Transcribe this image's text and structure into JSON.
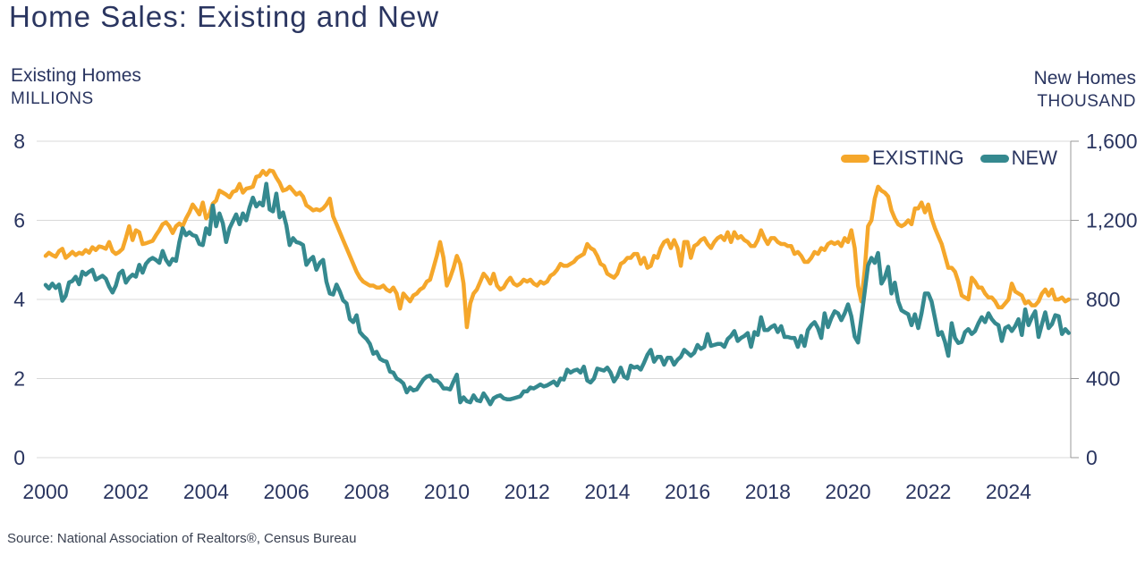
{
  "source": "Source: National Association of Realtors®, Census Bureau",
  "colors": {
    "existing": "#F5A72B",
    "new": "#35898F",
    "text_navy": "#2A3560",
    "gridline": "#D8D8D8",
    "axis_line": "#9A9A9A",
    "source_text": "#3A4151"
  },
  "chart_data": {
    "type": "line",
    "title": "Home Sales: Existing and New",
    "grid": "horizontal",
    "legend_position": "top-right-inside",
    "left_axis": {
      "label": "Existing Homes",
      "units": "MILLIONS",
      "lim": [
        0,
        8
      ],
      "ticks": [
        0,
        2,
        4,
        6,
        8
      ]
    },
    "right_axis": {
      "label": "New Homes",
      "units": "THOUSAND",
      "lim": [
        0,
        1600
      ],
      "ticks": [
        {
          "value": 0,
          "label": "0"
        },
        {
          "value": 400,
          "label": "400"
        },
        {
          "value": 800,
          "label": "800"
        },
        {
          "value": 1200,
          "label": "1,200"
        },
        {
          "value": 1600,
          "label": "1,600"
        }
      ]
    },
    "x_axis": {
      "start_year": 2000,
      "interval": "monthly",
      "end": "2025-07",
      "tick_years": [
        2000,
        2002,
        2004,
        2006,
        2008,
        2010,
        2012,
        2014,
        2016,
        2018,
        2020,
        2022,
        2024
      ]
    },
    "series": [
      {
        "name": "EXISTING",
        "axis": "left",
        "units": "millions SAAR",
        "color": "#F5A72B",
        "values": [
          5.1,
          5.18,
          5.12,
          5.08,
          5.22,
          5.28,
          5.05,
          5.12,
          5.2,
          5.12,
          5.18,
          5.15,
          5.25,
          5.18,
          5.32,
          5.25,
          5.34,
          5.32,
          5.28,
          5.45,
          5.22,
          5.15,
          5.2,
          5.28,
          5.55,
          5.85,
          5.5,
          5.75,
          5.7,
          5.4,
          5.42,
          5.45,
          5.48,
          5.62,
          5.75,
          5.9,
          5.95,
          5.85,
          5.68,
          5.85,
          5.92,
          5.85,
          6.05,
          6.2,
          6.4,
          6.28,
          6.15,
          6.45,
          6.05,
          6.15,
          6.42,
          6.5,
          6.75,
          6.7,
          6.65,
          6.58,
          6.72,
          6.75,
          6.92,
          6.7,
          6.8,
          6.82,
          6.85,
          7.1,
          7.12,
          7.25,
          7.15,
          7.26,
          7.24,
          7.08,
          6.95,
          6.75,
          6.78,
          6.85,
          6.75,
          6.65,
          6.7,
          6.6,
          6.38,
          6.32,
          6.25,
          6.28,
          6.25,
          6.3,
          6.4,
          6.55,
          6.1,
          5.9,
          5.7,
          5.5,
          5.3,
          5.1,
          4.9,
          4.7,
          4.55,
          4.45,
          4.4,
          4.35,
          4.35,
          4.3,
          4.3,
          4.35,
          4.25,
          4.2,
          4.3,
          4.15,
          3.77,
          4.15,
          4.05,
          3.95,
          4.1,
          4.15,
          4.25,
          4.3,
          4.45,
          4.5,
          4.8,
          5.1,
          5.45,
          5.05,
          4.35,
          4.55,
          4.8,
          5.1,
          4.9,
          4.4,
          3.3,
          3.9,
          4.15,
          4.25,
          4.45,
          4.65,
          4.55,
          4.4,
          4.65,
          4.35,
          4.25,
          4.3,
          4.45,
          4.55,
          4.4,
          4.35,
          4.4,
          4.5,
          4.45,
          4.5,
          4.4,
          4.35,
          4.45,
          4.4,
          4.45,
          4.6,
          4.65,
          4.75,
          4.9,
          4.85,
          4.85,
          4.9,
          4.95,
          5.05,
          5.1,
          5.15,
          5.4,
          5.3,
          5.25,
          5.1,
          4.9,
          4.85,
          4.65,
          4.6,
          4.55,
          4.65,
          4.9,
          4.95,
          5.05,
          5.05,
          5.15,
          5.15,
          4.9,
          5.05,
          4.8,
          4.85,
          5.1,
          5.05,
          5.3,
          5.45,
          5.5,
          5.3,
          5.5,
          5.3,
          4.85,
          5.45,
          5.45,
          5.05,
          5.35,
          5.4,
          5.5,
          5.55,
          5.4,
          5.3,
          5.45,
          5.55,
          5.6,
          5.5,
          5.7,
          5.45,
          5.7,
          5.55,
          5.6,
          5.5,
          5.45,
          5.35,
          5.35,
          5.5,
          5.75,
          5.55,
          5.4,
          5.55,
          5.55,
          5.45,
          5.4,
          5.4,
          5.35,
          5.35,
          5.15,
          5.2,
          5.1,
          4.95,
          4.95,
          5.05,
          5.2,
          5.15,
          5.3,
          5.25,
          5.4,
          5.45,
          5.4,
          5.45,
          5.35,
          5.55,
          5.45,
          5.75,
          5.3,
          4.35,
          3.95,
          4.75,
          5.85,
          6.0,
          6.55,
          6.85,
          6.75,
          6.7,
          6.6,
          6.25,
          6.05,
          5.9,
          5.85,
          5.9,
          6.0,
          5.9,
          6.3,
          6.3,
          6.45,
          6.2,
          6.4,
          6.05,
          5.8,
          5.6,
          5.4,
          5.1,
          4.8,
          4.8,
          4.7,
          4.45,
          4.1,
          4.05,
          4.0,
          4.55,
          4.45,
          4.3,
          4.3,
          4.15,
          4.05,
          4.05,
          3.95,
          3.8,
          3.8,
          3.9,
          4.0,
          4.4,
          4.2,
          4.15,
          4.1,
          3.9,
          3.95,
          3.85,
          3.85,
          3.95,
          4.15,
          4.25,
          4.1,
          4.25,
          4.0,
          4.0,
          4.05,
          3.95,
          4.0
        ]
      },
      {
        "name": "NEW",
        "axis": "right",
        "units": "thousands SAAR",
        "color": "#35898F",
        "values": [
          873,
          855,
          880,
          858,
          875,
          793,
          818,
          886,
          893,
          915,
          877,
          940,
          925,
          940,
          950,
          900,
          910,
          920,
          905,
          865,
          835,
          870,
          930,
          945,
          885,
          910,
          925,
          915,
          975,
          935,
          980,
          1000,
          1010,
          1000,
          985,
          1045,
          1000,
          975,
          1005,
          995,
          1090,
          1160,
          1125,
          1140,
          1125,
          1120,
          1080,
          1075,
          1160,
          1130,
          1275,
          1170,
          1235,
          1185,
          1090,
          1160,
          1195,
          1230,
          1180,
          1235,
          1200,
          1265,
          1315,
          1270,
          1290,
          1275,
          1385,
          1255,
          1245,
          1335,
          1215,
          1240,
          1175,
          1075,
          1110,
          1090,
          1085,
          1075,
          975,
          1000,
          1015,
          950,
          985,
          1000,
          890,
          830,
          825,
          875,
          840,
          795,
          780,
          700,
          685,
          720,
          635,
          615,
          600,
          575,
          525,
          535,
          500,
          490,
          485,
          435,
          430,
          400,
          390,
          375,
          330,
          355,
          340,
          345,
          370,
          395,
          410,
          415,
          390,
          390,
          375,
          350,
          350,
          345,
          385,
          420,
          280,
          305,
          285,
          280,
          315,
          290,
          285,
          325,
          300,
          270,
          300,
          310,
          315,
          300,
          295,
          295,
          300,
          305,
          310,
          335,
          335,
          355,
          350,
          360,
          370,
          360,
          365,
          375,
          385,
          365,
          400,
          395,
          445,
          430,
          440,
          445,
          430,
          460,
          390,
          380,
          400,
          450,
          445,
          440,
          455,
          430,
          385,
          410,
          455,
          410,
          400,
          465,
          455,
          460,
          445,
          480,
          520,
          545,
          485,
          510,
          510,
          470,
          505,
          505,
          470,
          495,
          510,
          545,
          530,
          515,
          530,
          570,
          550,
          560,
          625,
          565,
          570,
          575,
          575,
          560,
          600,
          615,
          640,
          590,
          605,
          615,
          630,
          560,
          635,
          620,
          710,
          645,
          645,
          660,
          670,
          635,
          665,
          610,
          610,
          605,
          605,
          560,
          615,
          565,
          645,
          670,
          685,
          655,
          605,
          730,
          660,
          705,
          740,
          730,
          695,
          730,
          775,
          715,
          612,
          582,
          705,
          840,
          972,
          1010,
          985,
          1035,
          880,
          910,
          965,
          830,
          885,
          790,
          745,
          735,
          725,
          670,
          725,
          655,
          730,
          830,
          830,
          790,
          705,
          620,
          635,
          585,
          515,
          680,
          605,
          580,
          585,
          635,
          650,
          625,
          640,
          680,
          710,
          685,
          730,
          700,
          680,
          670,
          590,
          655,
          665,
          640,
          665,
          700,
          620,
          750,
          670,
          710,
          740,
          610,
          675,
          735,
          655,
          675,
          720,
          715,
          625,
          650,
          630
        ]
      }
    ]
  }
}
